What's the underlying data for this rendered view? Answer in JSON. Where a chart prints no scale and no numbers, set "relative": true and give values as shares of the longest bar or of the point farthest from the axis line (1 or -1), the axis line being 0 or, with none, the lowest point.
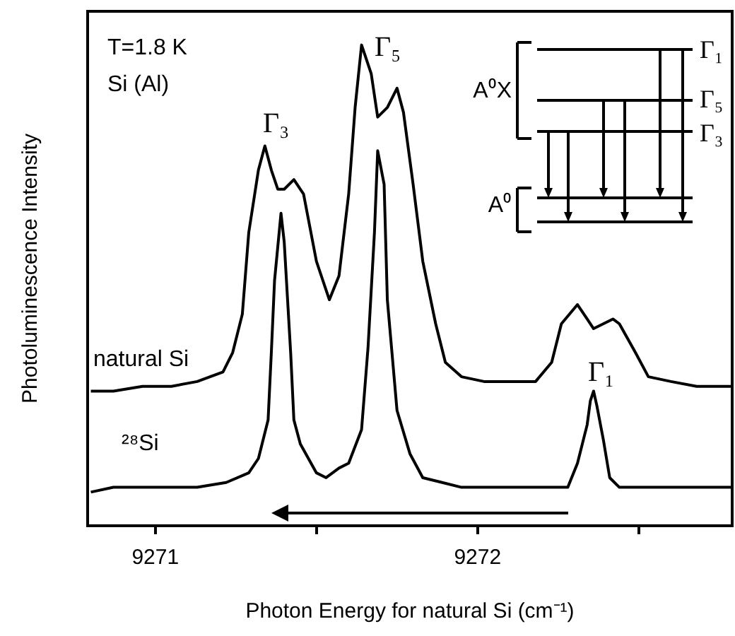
{
  "chart_data": {
    "type": "line",
    "relative": true,
    "xlabel": "Photon Energy for natural Si (cm⁻¹)",
    "ylabel": "Photoluminescence Intensity",
    "xlim": [
      9270.79,
      9272.79
    ],
    "xticks": [
      9271,
      {
        "value": 9271.5,
        "label": null
      },
      9272,
      {
        "value": 9272.5,
        "label": null
      }
    ],
    "tick_labels": "x",
    "grid": false,
    "legend": false,
    "marker": "none",
    "line_style": "solid",
    "series": [
      {
        "name": "natural Si",
        "color": "#000000",
        "x": [
          9270.8,
          9270.87,
          9270.96,
          9271.05,
          9271.13,
          9271.21,
          9271.24,
          9271.27,
          9271.29,
          9271.32,
          9271.34,
          9271.36,
          9271.38,
          9271.4,
          9271.43,
          9271.46,
          9271.5,
          9271.54,
          9271.57,
          9271.6,
          9271.62,
          9271.64,
          9271.67,
          9271.69,
          9271.72,
          9271.75,
          9271.77,
          9271.8,
          9271.83,
          9271.87,
          9271.9,
          9271.95,
          9272.02,
          9272.1,
          9272.18,
          9272.23,
          9272.26,
          9272.31,
          9272.34,
          9272.36,
          9272.39,
          9272.42,
          9272.44,
          9272.49,
          9272.53,
          9272.6,
          9272.68,
          9272.79
        ],
        "values": [
          0.28,
          0.28,
          0.29,
          0.29,
          0.3,
          0.32,
          0.36,
          0.44,
          0.61,
          0.74,
          0.79,
          0.74,
          0.7,
          0.7,
          0.72,
          0.69,
          0.55,
          0.47,
          0.52,
          0.69,
          0.87,
          1,
          0.94,
          0.85,
          0.87,
          0.91,
          0.86,
          0.71,
          0.55,
          0.42,
          0.34,
          0.31,
          0.3,
          0.3,
          0.3,
          0.34,
          0.42,
          0.46,
          0.43,
          0.41,
          0.42,
          0.43,
          0.42,
          0.36,
          0.31,
          0.3,
          0.29,
          0.29
        ]
      },
      {
        "name": "²⁸Si",
        "color": "#000000",
        "x": [
          9270.8,
          9270.87,
          9270.96,
          9271.05,
          9271.13,
          9271.22,
          9271.29,
          9271.32,
          9271.35,
          9271.36,
          9271.37,
          9271.39,
          9271.4,
          9271.42,
          9271.43,
          9271.45,
          9271.5,
          9271.53,
          9271.57,
          9271.6,
          9271.64,
          9271.66,
          9271.68,
          9271.69,
          9271.71,
          9271.72,
          9271.75,
          9271.79,
          9271.83,
          9271.89,
          9271.95,
          9272.02,
          9272.1,
          9272.17,
          9272.24,
          9272.28,
          9272.31,
          9272.34,
          9272.35,
          9272.36,
          9272.37,
          9272.39,
          9272.41,
          9272.44,
          9272.53,
          9272.68,
          9272.79
        ],
        "values": [
          0.07,
          0.08,
          0.08,
          0.08,
          0.08,
          0.09,
          0.11,
          0.14,
          0.22,
          0.36,
          0.51,
          0.65,
          0.59,
          0.36,
          0.22,
          0.17,
          0.11,
          0.1,
          0.12,
          0.13,
          0.2,
          0.37,
          0.61,
          0.78,
          0.71,
          0.47,
          0.24,
          0.15,
          0.1,
          0.09,
          0.08,
          0.08,
          0.08,
          0.08,
          0.08,
          0.08,
          0.13,
          0.21,
          0.26,
          0.28,
          0.25,
          0.18,
          0.1,
          0.08,
          0.08,
          0.08,
          0.08
        ]
      }
    ],
    "annotations": [
      "T=1.8 K",
      "Si (Al)",
      "Γ₃",
      "Γ₅",
      "Γ₁",
      "A⁰X",
      "A⁰",
      "Γ₁",
      "Γ₅",
      "Γ₃"
    ]
  }
}
